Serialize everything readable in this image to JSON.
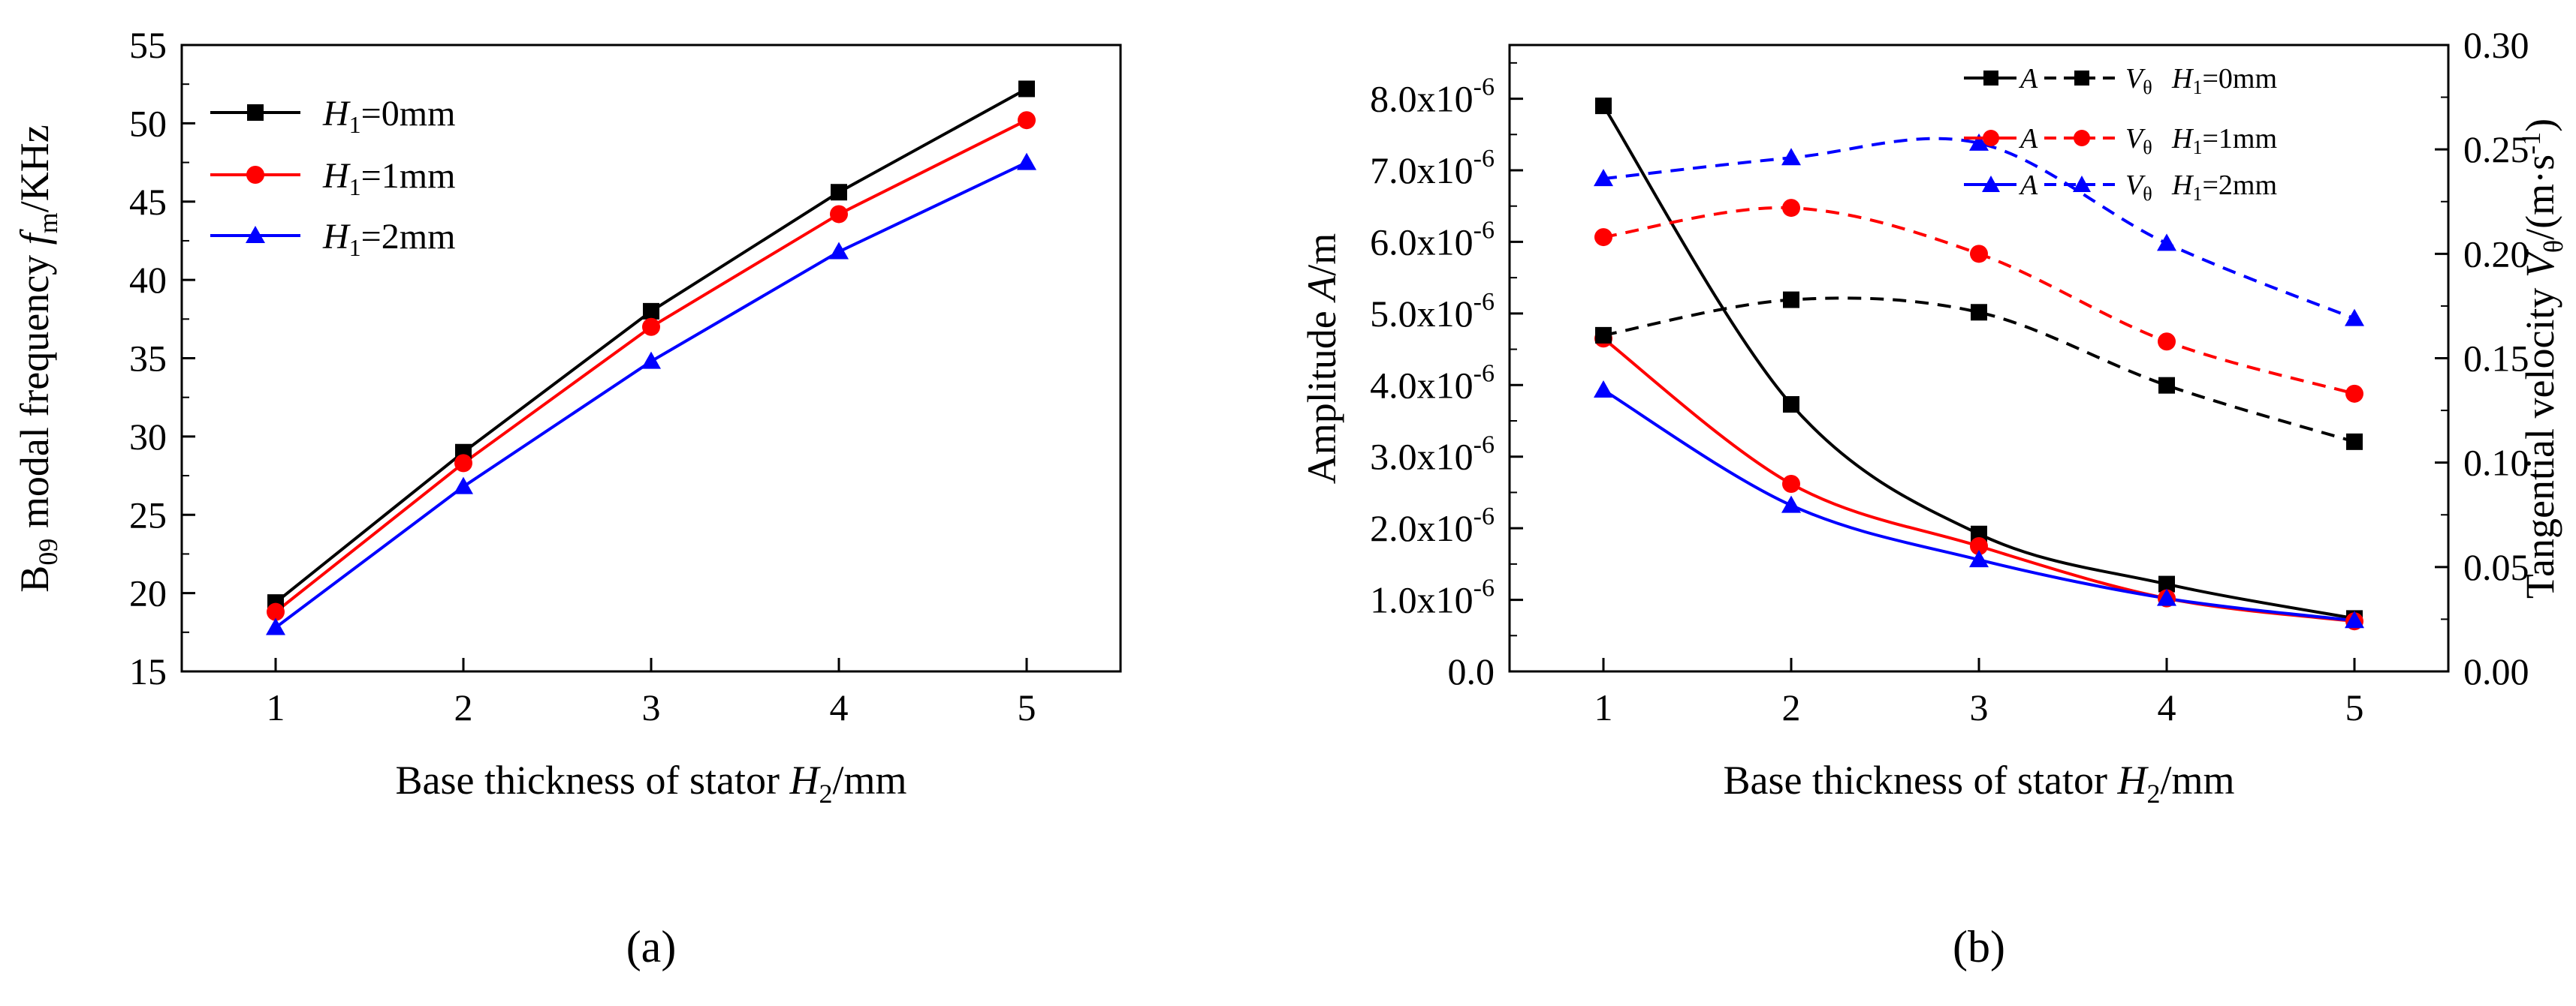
{
  "colors": {
    "black": "#000000",
    "red": "#ff0000",
    "blue": "#0000ff"
  },
  "chart_data": [
    {
      "panel_label": "(a)",
      "type": "line",
      "x": [
        1,
        2,
        3,
        4,
        5
      ],
      "xlim": [
        0.5,
        5.5
      ],
      "ylim": [
        15,
        55
      ],
      "xticks": [
        1,
        2,
        3,
        4,
        5
      ],
      "yticks": [
        15,
        20,
        25,
        30,
        35,
        40,
        45,
        50,
        55
      ],
      "xlabel": {
        "main": "Base thickness of stator ",
        "var": "H",
        "sub": "2",
        "unit": "/mm"
      },
      "ylabel": {
        "pre": "B",
        "pre_sub": "09",
        "main": " modal frequency ",
        "var": "f",
        "sub": "m",
        "unit": "/KHz"
      },
      "legend_position": "top-left",
      "series": [
        {
          "name": "H1=0mm",
          "label": {
            "var": "H",
            "sub": "1",
            "rest": "=0mm"
          },
          "color": "#000000",
          "marker": "square",
          "values": [
            19.4,
            29.0,
            38.0,
            45.6,
            52.2
          ]
        },
        {
          "name": "H1=1mm",
          "label": {
            "var": "H",
            "sub": "1",
            "rest": "=1mm"
          },
          "color": "#ff0000",
          "marker": "circle",
          "values": [
            18.8,
            28.3,
            37.0,
            44.2,
            50.2
          ]
        },
        {
          "name": "H1=2mm",
          "label": {
            "var": "H",
            "sub": "1",
            "rest": "=2mm"
          },
          "color": "#0000ff",
          "marker": "triangle",
          "values": [
            17.8,
            26.8,
            34.8,
            41.8,
            47.5
          ]
        }
      ]
    },
    {
      "panel_label": "(b)",
      "type": "line",
      "x": [
        1,
        2,
        3,
        4,
        5
      ],
      "xlim": [
        0.5,
        5.5
      ],
      "ylim_left": [
        0,
        8.75
      ],
      "ylim_right": [
        0,
        0.3
      ],
      "xticks": [
        1,
        2,
        3,
        4,
        5
      ],
      "yticks_left": [
        0,
        1,
        2,
        3,
        4,
        5,
        6,
        7,
        8
      ],
      "ytick_labels_left": [
        "0.0",
        "1.0x10",
        "2.0x10",
        "3.0x10",
        "4.0x10",
        "5.0x10",
        "6.0x10",
        "7.0x10",
        "8.0x10"
      ],
      "ytick_exponent": "-6",
      "yticks_right": [
        0,
        0.05,
        0.1,
        0.15,
        0.2,
        0.25,
        0.3
      ],
      "ytick_labels_right": [
        "0.00",
        "0.05",
        "0.10",
        "0.15",
        "0.20",
        "0.25",
        "0.30"
      ],
      "xlabel": {
        "main": "Base thickness of stator ",
        "var": "H",
        "sub": "2",
        "unit": "/mm"
      },
      "ylabel_left": {
        "main": "Amplitude ",
        "var": "A",
        "unit": "/m"
      },
      "ylabel_right": {
        "main": "Tangential velocity ",
        "var": "V",
        "sub": "θ",
        "unit": "/(m·s",
        "sup": "-1",
        "close": ")"
      },
      "legend_position": "top-right",
      "legend": [
        {
          "amp_label": "A",
          "vel_label": "V",
          "vel_sub": "θ",
          "h_var": "H",
          "h_sub": "1",
          "h_rest": "=0mm",
          "color": "#000000"
        },
        {
          "amp_label": "A",
          "vel_label": "V",
          "vel_sub": "θ",
          "h_var": "H",
          "h_sub": "1",
          "h_rest": "=1mm",
          "color": "#ff0000"
        },
        {
          "amp_label": "A",
          "vel_label": "V",
          "vel_sub": "θ",
          "h_var": "H",
          "h_sub": "1",
          "h_rest": "=2mm",
          "color": "#0000ff"
        }
      ],
      "series": [
        {
          "name": "A H1=0mm",
          "axis": "left",
          "unit_scale": "1e-6 m",
          "color": "#000000",
          "marker": "square",
          "dash": false,
          "values": [
            7.9,
            3.73,
            1.92,
            1.22,
            0.74
          ]
        },
        {
          "name": "A H1=1mm",
          "axis": "left",
          "unit_scale": "1e-6 m",
          "color": "#ff0000",
          "marker": "circle",
          "dash": false,
          "values": [
            4.65,
            2.62,
            1.75,
            1.02,
            0.7
          ]
        },
        {
          "name": "A H1=2mm",
          "axis": "left",
          "unit_scale": "1e-6 m",
          "color": "#0000ff",
          "marker": "triangle",
          "dash": false,
          "values": [
            3.93,
            2.32,
            1.56,
            1.02,
            0.71
          ]
        },
        {
          "name": "Vθ H1=0mm",
          "axis": "right",
          "color": "#000000",
          "marker": "square",
          "dash": true,
          "values": [
            0.161,
            0.178,
            0.172,
            0.137,
            0.11
          ]
        },
        {
          "name": "Vθ H1=1mm",
          "axis": "right",
          "color": "#ff0000",
          "marker": "circle",
          "dash": true,
          "values": [
            0.208,
            0.222,
            0.2,
            0.158,
            0.133
          ]
        },
        {
          "name": "Vθ H1=2mm",
          "axis": "right",
          "color": "#0000ff",
          "marker": "triangle",
          "dash": true,
          "values": [
            0.236,
            0.246,
            0.253,
            0.205,
            0.169
          ]
        }
      ]
    }
  ]
}
